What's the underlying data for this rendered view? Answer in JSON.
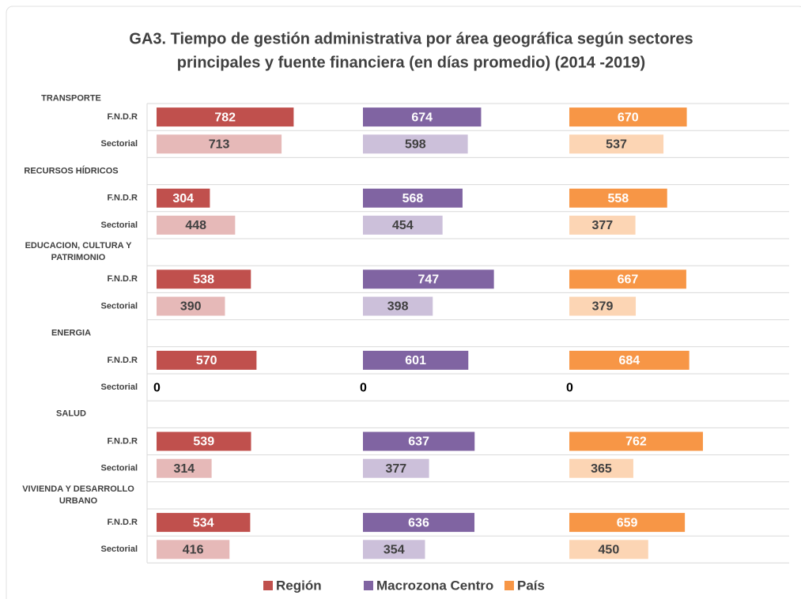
{
  "chart_data": {
    "type": "bar",
    "orientation": "horizontal",
    "title": [
      "GA3. Tiempo de gestión administrativa por área geográfica según sectores",
      "principales  y fuente financiera (en días promedio) (2014 -2019)"
    ],
    "groups": [
      {
        "name": "TRANSPORTE",
        "categories": [
          "F.N.D.R",
          "Sectorial"
        ]
      },
      {
        "name": "RECURSOS HÍDRICOS",
        "categories": [
          "F.N.D.R",
          "Sectorial"
        ]
      },
      {
        "name": "EDUCACION, CULTURA Y PATRIMONIO",
        "categories": [
          "F.N.D.R",
          "Sectorial"
        ]
      },
      {
        "name": "ENERGIA",
        "categories": [
          "F.N.D.R",
          "Sectorial"
        ]
      },
      {
        "name": "SALUD",
        "categories": [
          "F.N.D.R",
          "Sectorial"
        ]
      },
      {
        "name": "VIVIENDA Y DESARROLLO URBANO",
        "categories": [
          "F.N.D.R",
          "Sectorial"
        ]
      }
    ],
    "series": [
      {
        "name": "Región",
        "colors": [
          "#c0504d",
          "#e6b9b8"
        ],
        "values": [
          782,
          713,
          304,
          448,
          538,
          390,
          570,
          0,
          539,
          314,
          534,
          416
        ]
      },
      {
        "name": "Macrozona Centro",
        "colors": [
          "#8064a2",
          "#ccc0da"
        ],
        "values": [
          674,
          598,
          568,
          454,
          747,
          398,
          601,
          0,
          637,
          377,
          636,
          354
        ]
      },
      {
        "name": "País",
        "colors": [
          "#f79646",
          "#fcd5b4"
        ],
        "values": [
          670,
          537,
          558,
          377,
          667,
          379,
          684,
          0,
          762,
          365,
          659,
          450
        ]
      }
    ],
    "xlim": [
      0,
      1150
    ],
    "legend": "bottom"
  }
}
